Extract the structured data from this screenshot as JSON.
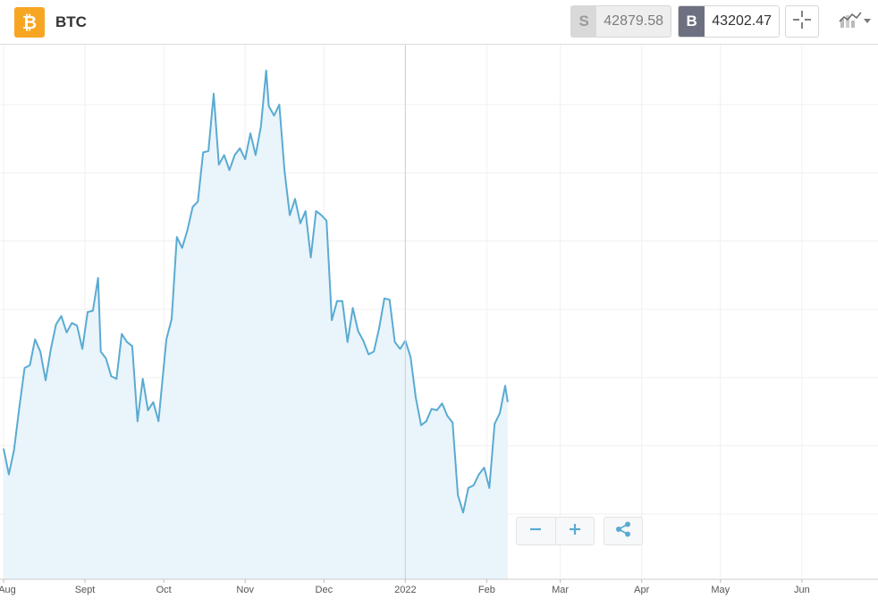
{
  "header": {
    "symbol": "BTC",
    "sell_tag": "S",
    "sell_price": "42879.58",
    "buy_tag": "B",
    "buy_price": "43202.47",
    "coin_icon": "bitcoin-icon",
    "crosshair_icon": "crosshair-icon",
    "chart_type_icon": "line-chart-icon",
    "dropdown_icon": "caret-down-icon"
  },
  "controls": {
    "zoom_out_icon": "minus-icon",
    "zoom_in_icon": "plus-icon",
    "share_icon": "share-icon"
  },
  "colors": {
    "accent": "#5aabd2",
    "area_fill": "#eaf4fb",
    "coin": "#f7a623",
    "buy_tag": "#6d7080",
    "sell_tag": "#d9d9d9"
  },
  "chart_data": {
    "type": "area",
    "title": "",
    "xlabel": "",
    "ylabel": "",
    "grid": true,
    "y_axis_labels_shown": false,
    "xlim": [
      "2021-08-01",
      "2022-06-30"
    ],
    "ylim": [
      31000,
      69000
    ],
    "x_ticks": [
      {
        "label": "Aug",
        "date": "2021-08-01"
      },
      {
        "label": "Sept",
        "date": "2021-09-01"
      },
      {
        "label": "Oct",
        "date": "2021-10-01"
      },
      {
        "label": "Nov",
        "date": "2021-11-01"
      },
      {
        "label": "Dec",
        "date": "2021-12-01"
      },
      {
        "label": "2022",
        "date": "2022-01-01"
      },
      {
        "label": "Feb",
        "date": "2022-02-01"
      },
      {
        "label": "Mar",
        "date": "2022-03-01"
      },
      {
        "label": "Apr",
        "date": "2022-04-01"
      },
      {
        "label": "May",
        "date": "2022-05-01"
      },
      {
        "label": "Jun",
        "date": "2022-06-01"
      }
    ],
    "series": [
      {
        "points": [
          [
            "2021-08-01",
            39800
          ],
          [
            "2021-08-03",
            37900
          ],
          [
            "2021-08-05",
            39700
          ],
          [
            "2021-08-07",
            42800
          ],
          [
            "2021-08-09",
            45700
          ],
          [
            "2021-08-11",
            45900
          ],
          [
            "2021-08-13",
            47800
          ],
          [
            "2021-08-15",
            46900
          ],
          [
            "2021-08-17",
            44800
          ],
          [
            "2021-08-19",
            47100
          ],
          [
            "2021-08-21",
            48900
          ],
          [
            "2021-08-23",
            49500
          ],
          [
            "2021-08-25",
            48300
          ],
          [
            "2021-08-27",
            49000
          ],
          [
            "2021-08-29",
            48800
          ],
          [
            "2021-08-31",
            47100
          ],
          [
            "2021-09-02",
            49800
          ],
          [
            "2021-09-04",
            49900
          ],
          [
            "2021-09-06",
            52300
          ],
          [
            "2021-09-07",
            46900
          ],
          [
            "2021-09-09",
            46400
          ],
          [
            "2021-09-11",
            45100
          ],
          [
            "2021-09-13",
            44900
          ],
          [
            "2021-09-15",
            48200
          ],
          [
            "2021-09-17",
            47600
          ],
          [
            "2021-09-19",
            47300
          ],
          [
            "2021-09-21",
            41800
          ],
          [
            "2021-09-23",
            44900
          ],
          [
            "2021-09-25",
            42600
          ],
          [
            "2021-09-27",
            43200
          ],
          [
            "2021-09-29",
            41800
          ],
          [
            "2021-09-30",
            43800
          ],
          [
            "2021-10-02",
            47800
          ],
          [
            "2021-10-04",
            49300
          ],
          [
            "2021-10-06",
            55300
          ],
          [
            "2021-10-08",
            54500
          ],
          [
            "2021-10-10",
            55800
          ],
          [
            "2021-10-12",
            57500
          ],
          [
            "2021-10-14",
            57900
          ],
          [
            "2021-10-16",
            61500
          ],
          [
            "2021-10-18",
            61600
          ],
          [
            "2021-10-20",
            65800
          ],
          [
            "2021-10-22",
            60600
          ],
          [
            "2021-10-24",
            61300
          ],
          [
            "2021-10-26",
            60200
          ],
          [
            "2021-10-28",
            61300
          ],
          [
            "2021-10-30",
            61800
          ],
          [
            "2021-11-01",
            61000
          ],
          [
            "2021-11-03",
            62900
          ],
          [
            "2021-11-05",
            61300
          ],
          [
            "2021-11-07",
            63400
          ],
          [
            "2021-11-09",
            67500
          ],
          [
            "2021-11-10",
            64900
          ],
          [
            "2021-11-12",
            64200
          ],
          [
            "2021-11-14",
            65000
          ],
          [
            "2021-11-16",
            60100
          ],
          [
            "2021-11-18",
            56900
          ],
          [
            "2021-11-20",
            58100
          ],
          [
            "2021-11-22",
            56300
          ],
          [
            "2021-11-24",
            57200
          ],
          [
            "2021-11-26",
            53800
          ],
          [
            "2021-11-28",
            57200
          ],
          [
            "2021-11-30",
            56900
          ],
          [
            "2021-12-02",
            56500
          ],
          [
            "2021-12-04",
            49200
          ],
          [
            "2021-12-06",
            50600
          ],
          [
            "2021-12-08",
            50600
          ],
          [
            "2021-12-10",
            47600
          ],
          [
            "2021-12-12",
            50100
          ],
          [
            "2021-12-14",
            48400
          ],
          [
            "2021-12-16",
            47700
          ],
          [
            "2021-12-18",
            46700
          ],
          [
            "2021-12-20",
            46900
          ],
          [
            "2021-12-22",
            48600
          ],
          [
            "2021-12-24",
            50800
          ],
          [
            "2021-12-26",
            50700
          ],
          [
            "2021-12-28",
            47600
          ],
          [
            "2021-12-30",
            47100
          ],
          [
            "2022-01-01",
            47700
          ],
          [
            "2022-01-03",
            46500
          ],
          [
            "2022-01-05",
            43500
          ],
          [
            "2022-01-07",
            41500
          ],
          [
            "2022-01-09",
            41800
          ],
          [
            "2022-01-11",
            42700
          ],
          [
            "2022-01-13",
            42600
          ],
          [
            "2022-01-15",
            43100
          ],
          [
            "2022-01-17",
            42200
          ],
          [
            "2022-01-19",
            41700
          ],
          [
            "2022-01-21",
            36400
          ],
          [
            "2022-01-23",
            35100
          ],
          [
            "2022-01-25",
            36900
          ],
          [
            "2022-01-27",
            37100
          ],
          [
            "2022-01-29",
            37900
          ],
          [
            "2022-01-31",
            38400
          ],
          [
            "2022-02-02",
            36900
          ],
          [
            "2022-02-04",
            41600
          ],
          [
            "2022-02-06",
            42400
          ],
          [
            "2022-02-08",
            44400
          ],
          [
            "2022-02-09",
            43200
          ]
        ]
      }
    ]
  }
}
